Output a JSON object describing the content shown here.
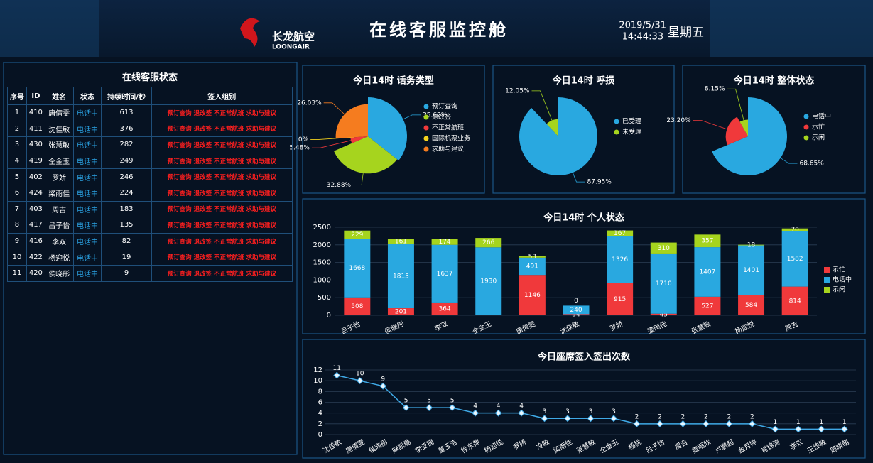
{
  "header": {
    "brand": "长龙航空",
    "brand_en": "LOONGAIR",
    "title": "在线客服监控舱",
    "date": "2019/5/31",
    "time": "14:44:33",
    "weekday": "星期五"
  },
  "table": {
    "title": "在线客服状态",
    "columns": [
      "序号",
      "ID",
      "姓名",
      "状态",
      "持续时间/秒",
      "签入组别"
    ],
    "rows": [
      [
        1,
        410,
        "唐倩雯",
        "电话中",
        613,
        "预订查询 退改签 不正常航班 求助与建议"
      ],
      [
        2,
        411,
        "沈佳敏",
        "电话中",
        376,
        "预订查询 退改签 不正常航班 求助与建议"
      ],
      [
        3,
        430,
        "张慧敏",
        "电话中",
        282,
        "预订查询 退改签 不正常航班 求助与建议"
      ],
      [
        4,
        419,
        "仝金玉",
        "电话中",
        249,
        "预订查询 退改签 不正常航班 求助与建议"
      ],
      [
        5,
        402,
        "罗娇",
        "电话中",
        246,
        "预订查询 退改签 不正常航班 求助与建议"
      ],
      [
        6,
        424,
        "梁雨佳",
        "电话中",
        224,
        "预订查询 退改签 不正常航班 求助与建议"
      ],
      [
        7,
        403,
        "周吉",
        "电话中",
        183,
        "预订查询 退改签 不正常航班 求助与建议"
      ],
      [
        8,
        417,
        "吕子怡",
        "电话中",
        135,
        "预订查询 退改签 不正常航班 求助与建议"
      ],
      [
        9,
        416,
        "李双",
        "电话中",
        82,
        "预订查询 退改签 不正常航班 求助与建议"
      ],
      [
        10,
        422,
        "杨迎悦",
        "电话中",
        19,
        "预订查询 退改签 不正常航班 求助与建议"
      ],
      [
        11,
        420,
        "侯晓彤",
        "电话中",
        9,
        "预订查询 退改签 不正常航班 求助与建议"
      ]
    ]
  },
  "chart_data": [
    {
      "type": "pie",
      "title": "今日14时 话务类型",
      "rose": true,
      "categories": [
        "预订查询",
        "退改签",
        "不正常航班",
        "国际机票业务",
        "求助与建议"
      ],
      "values": [
        35.62,
        32.88,
        5.48,
        0,
        26.03
      ],
      "value_labels": [
        "35.62%",
        "32.88%",
        "5.48%",
        "0%",
        "26.03%"
      ],
      "colors": [
        "#29a8e0",
        "#a6d41e",
        "#f0393b",
        "#f4d21e",
        "#f57c1f"
      ]
    },
    {
      "type": "pie",
      "title": "今日14时 呼损",
      "rose": true,
      "categories": [
        "已受理",
        "未受理"
      ],
      "values": [
        87.95,
        12.05
      ],
      "value_labels": [
        "87.95%",
        "12.05%"
      ],
      "colors": [
        "#29a8e0",
        "#a6d41e"
      ]
    },
    {
      "type": "pie",
      "title": "今日14时 整体状态",
      "rose": true,
      "categories": [
        "电话中",
        "示忙",
        "示闲"
      ],
      "values": [
        68.65,
        23.2,
        8.15
      ],
      "value_labels": [
        "68.65%",
        "23.20%",
        "8.15%"
      ],
      "colors": [
        "#29a8e0",
        "#f0393b",
        "#a6d41e"
      ]
    },
    {
      "type": "bar",
      "stacked": true,
      "title": "今日14时 个人状态",
      "categories": [
        "吕子怡",
        "侯晓彤",
        "李双",
        "仝金玉",
        "唐倩雯",
        "沈佳敏",
        "罗娇",
        "梁雨佳",
        "张慧敏",
        "杨迎悦",
        "周吉"
      ],
      "series": [
        {
          "name": "示忙",
          "color": "#f0393b",
          "values": [
            508,
            201,
            364,
            0,
            1146,
            34,
            915,
            45,
            527,
            584,
            814
          ]
        },
        {
          "name": "电话中",
          "color": "#29a8e0",
          "values": [
            1668,
            1815,
            1637,
            1930,
            491,
            240,
            1326,
            1710,
            1407,
            1401,
            1582
          ]
        },
        {
          "name": "示闲",
          "color": "#a6d41e",
          "values": [
            229,
            161,
            174,
            266,
            53,
            0,
            167,
            310,
            357,
            18,
            70
          ]
        }
      ],
      "ylim": [
        0,
        2500
      ],
      "yticks": [
        0,
        500,
        1000,
        1500,
        2000,
        2500
      ],
      "grid": true
    },
    {
      "type": "line",
      "title": "今日座席签入签出次数",
      "color": "#3fa9e6",
      "categories": [
        "沈佳敏",
        "唐倩雯",
        "侯晓彤",
        "麻凯璐",
        "李亚楠",
        "童玉洁",
        "徐东萍",
        "杨迎悦",
        "罗娇",
        "冷敏",
        "梁雨佳",
        "张慧敏",
        "仝金玉",
        "杨桃",
        "吕子怡",
        "周吉",
        "姜雨欣",
        "卢鹏超",
        "金月婷",
        "肖锦涛",
        "李双",
        "王佳敏",
        "周晓萌"
      ],
      "values": [
        11,
        10,
        9,
        5,
        5,
        5,
        4,
        4,
        4,
        3,
        3,
        3,
        3,
        2,
        2,
        2,
        2,
        2,
        2,
        1,
        1,
        1,
        1
      ],
      "ylim": [
        0,
        12
      ],
      "yticks": [
        0,
        2,
        4,
        6,
        8,
        10,
        12
      ],
      "grid": true
    }
  ]
}
